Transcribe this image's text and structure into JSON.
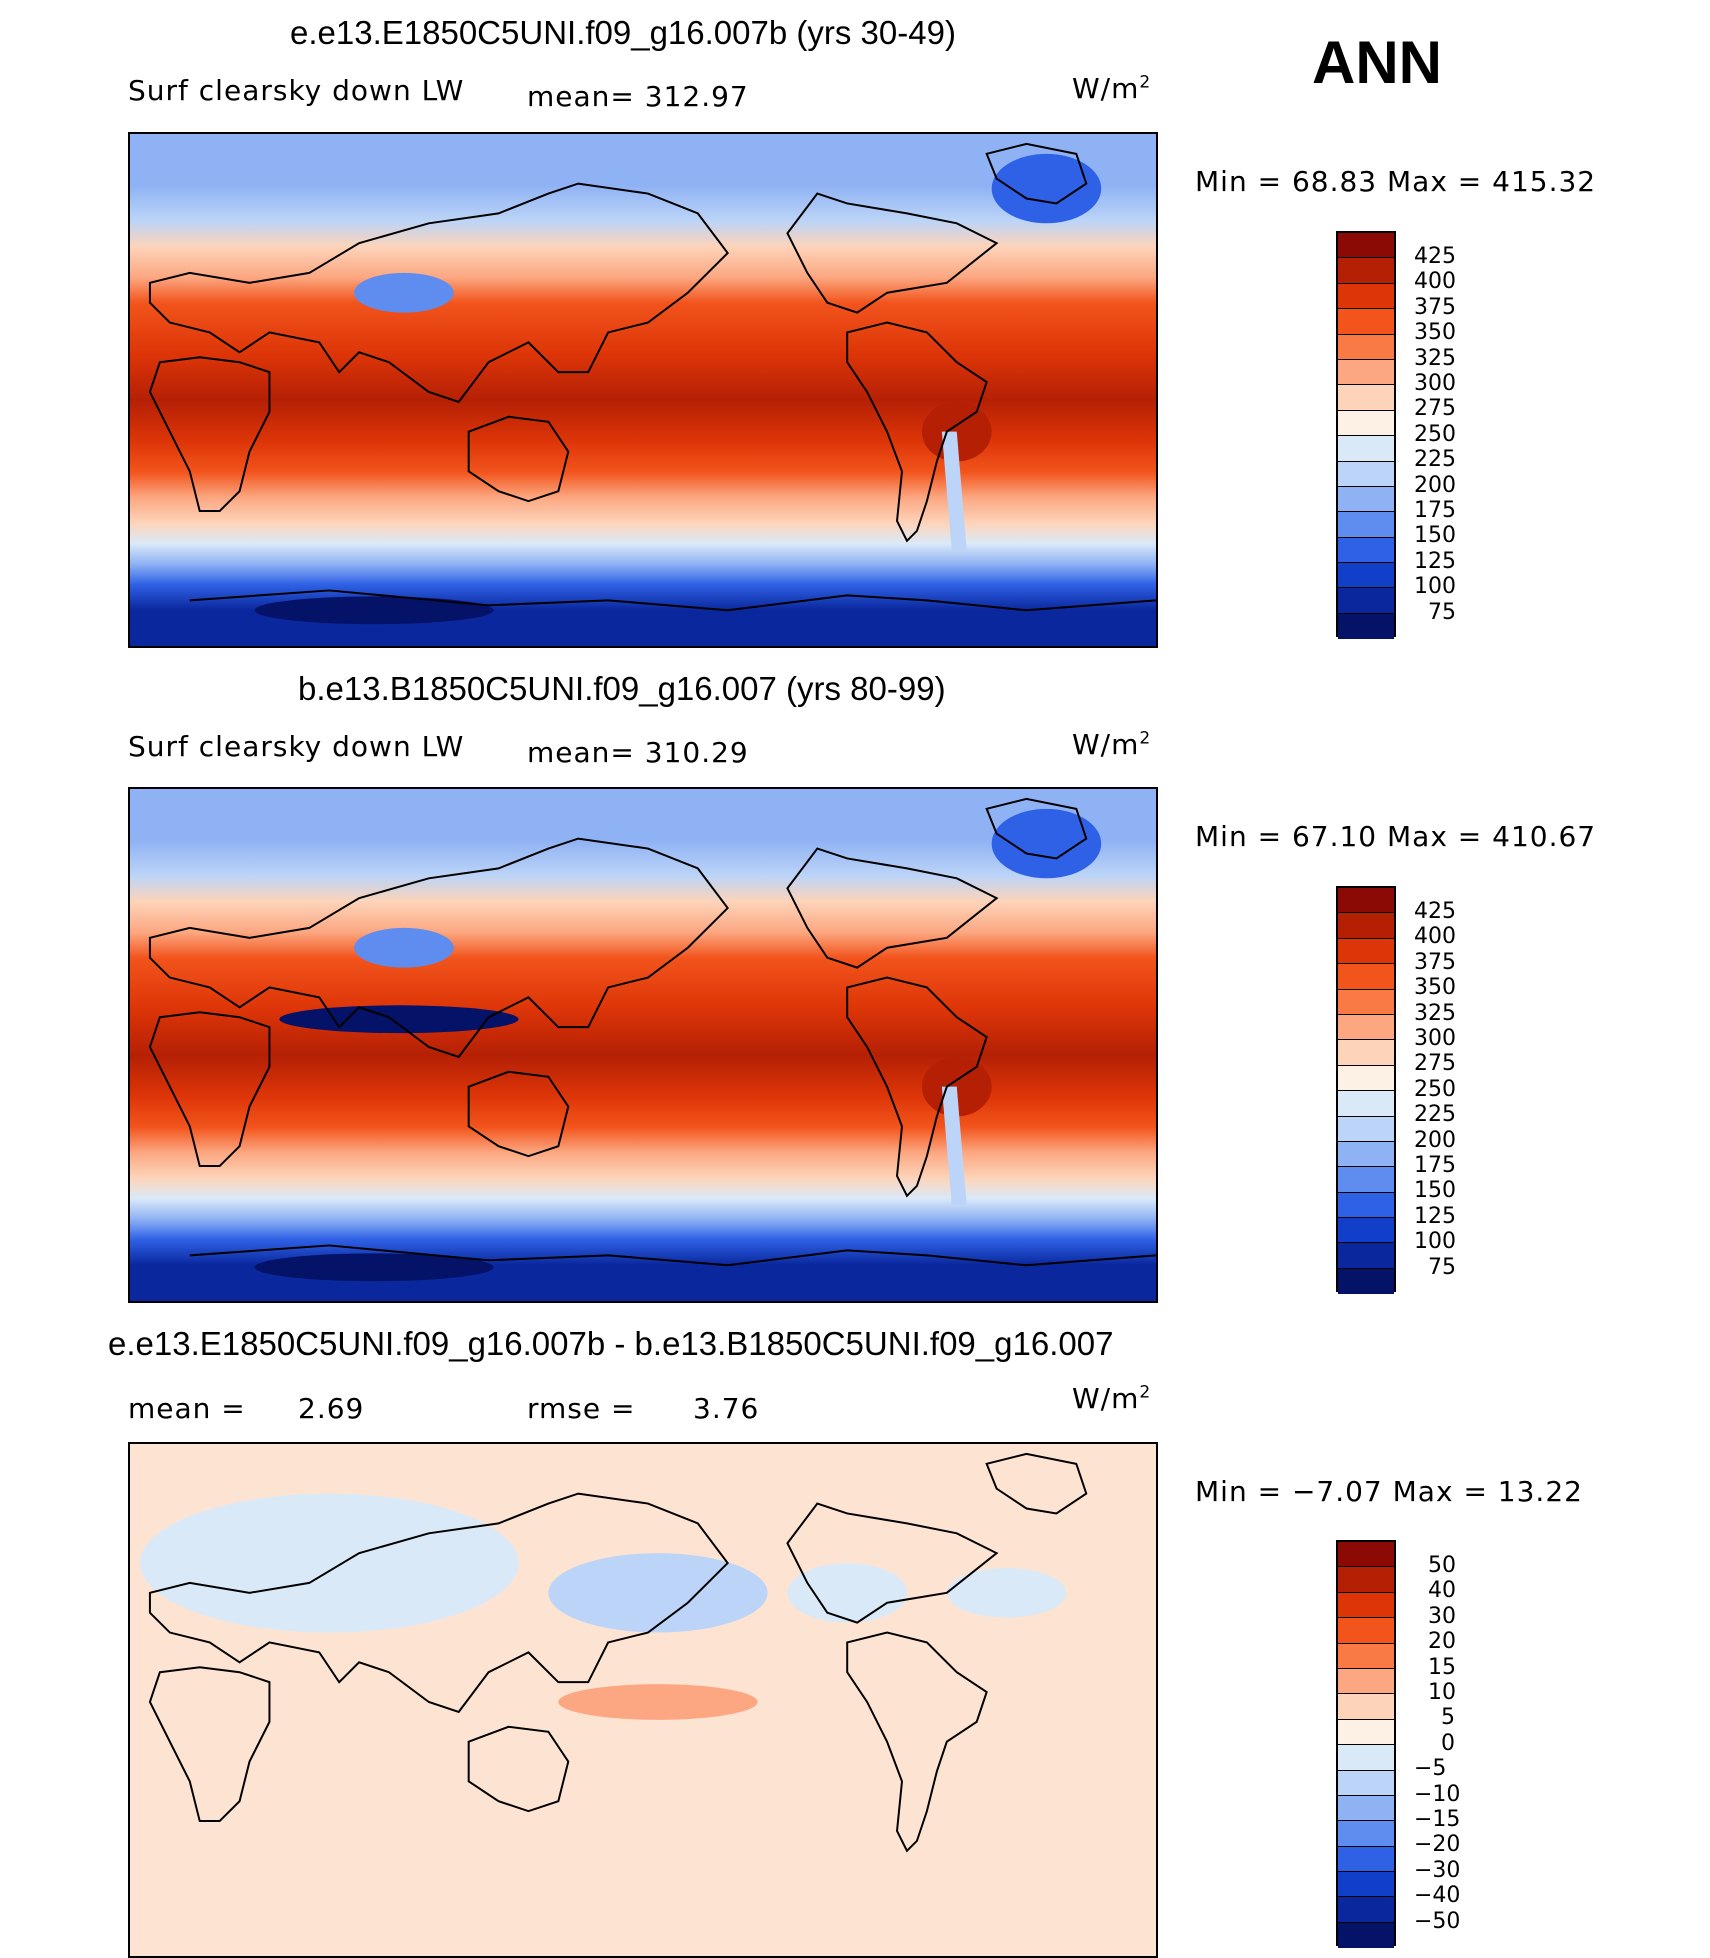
{
  "season": "ANN",
  "panels": [
    {
      "title": "e.e13.E1850C5UNI.f09_g16.007b (yrs 30-49)",
      "variable": "Surf clearsky down LW",
      "mean_text": "mean=  312.97",
      "units_base": "W/m",
      "units_exp": "2",
      "minmax": "Min =   68.83 Max  =  415.32"
    },
    {
      "title": "b.e13.B1850C5UNI.f09_g16.007 (yrs 80-99)",
      "variable": "Surf clearsky down LW",
      "mean_text": "mean=  310.29",
      "units_base": "W/m",
      "units_exp": "2",
      "minmax": "Min =   67.10 Max  =  410.67"
    },
    {
      "title": "e.e13.E1850C5UNI.f09_g16.007b - b.e13.B1850C5UNI.f09_g16.007",
      "mean_label": "mean  =",
      "mean_value": "2.69",
      "rmse_label": "rmse  =",
      "rmse_value": "3.76",
      "units_base": "W/m",
      "units_exp": "2",
      "minmax": "Min =  −7.07 Max  =    13.22"
    }
  ],
  "colorbars": {
    "abs": {
      "labels": [
        "425",
        "400",
        "375",
        "350",
        "325",
        "300",
        "275",
        "250",
        "225",
        "200",
        "175",
        "150",
        "125",
        "100",
        "75"
      ],
      "colors": [
        "#8b0a06",
        "#b52005",
        "#dd3508",
        "#f2541c",
        "#fa7a46",
        "#fca781",
        "#fdd4ba",
        "#fdf0e4",
        "#dae9f8",
        "#bcd4f7",
        "#8fb2f4",
        "#5f8def",
        "#2f61e6",
        "#123fc9",
        "#0a279d",
        "#041268"
      ]
    },
    "diff": {
      "labels": [
        "50",
        "40",
        "30",
        "20",
        "15",
        "10",
        "5",
        "0",
        "−5",
        "−10",
        "−15",
        "−20",
        "−30",
        "−40",
        "−50"
      ],
      "colors": [
        "#8b0a06",
        "#b52005",
        "#dd3508",
        "#f2541c",
        "#fa7a46",
        "#fca781",
        "#fdd4ba",
        "#fdf0e4",
        "#dae9f8",
        "#bcd4f7",
        "#8fb2f4",
        "#5f8def",
        "#2f61e6",
        "#123fc9",
        "#0a279d",
        "#041268"
      ]
    }
  }
}
